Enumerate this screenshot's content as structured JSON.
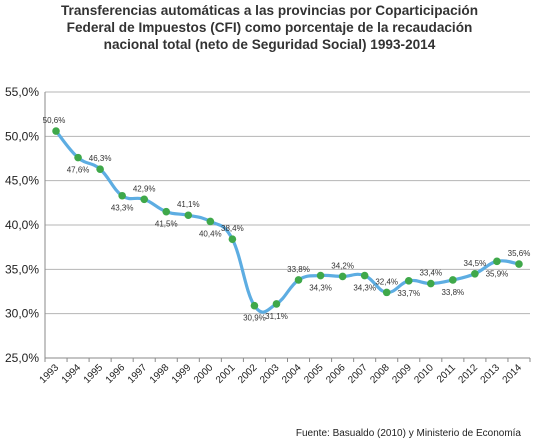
{
  "chart_data": {
    "type": "line",
    "title_lines": [
      "Transferencias automáticas a las provincias por Coparticipación",
      "Federal de Impuestos (CFI) como porcentaje de la recaudación",
      "nacional total (neto de Seguridad Social) 1993-2014"
    ],
    "source": "Fuente: Basualdo (2010) y Ministerio de Economía",
    "categories": [
      "1993",
      "1994",
      "1995",
      "1996",
      "1997",
      "1998",
      "1999",
      "2000",
      "2001",
      "2002",
      "2003",
      "2004",
      "2005",
      "2006",
      "2007",
      "2008",
      "2009",
      "2010",
      "2011",
      "2012",
      "2013",
      "2014"
    ],
    "values": [
      50.6,
      47.6,
      46.3,
      43.3,
      42.9,
      41.5,
      41.1,
      40.4,
      38.4,
      30.9,
      31.1,
      33.8,
      34.3,
      34.2,
      34.3,
      32.4,
      33.7,
      33.4,
      33.8,
      34.5,
      35.9,
      35.6
    ],
    "data_labels": [
      "50,6%",
      "47,6%",
      "46,3%",
      "43,3%",
      "42,9%",
      "41,5%",
      "41,1%",
      "40,4%",
      "38,4%",
      "30,9%",
      "31,1%",
      "33,8%",
      "34,3%",
      "34,2%",
      "34,3%",
      "32,4%",
      "33,7%",
      "33,4%",
      "33,8%",
      "34,5%",
      "35,9%",
      "35,6%"
    ],
    "yticks": [
      25,
      30,
      35,
      40,
      45,
      50,
      55
    ],
    "ytick_labels": [
      "25,0%",
      "30,0%",
      "35,0%",
      "40,0%",
      "45,0%",
      "50,0%",
      "55,0%"
    ],
    "ylim": [
      25,
      55
    ],
    "grid": true,
    "line_color": "#5DADE2",
    "marker_color": "#3FA84A"
  }
}
